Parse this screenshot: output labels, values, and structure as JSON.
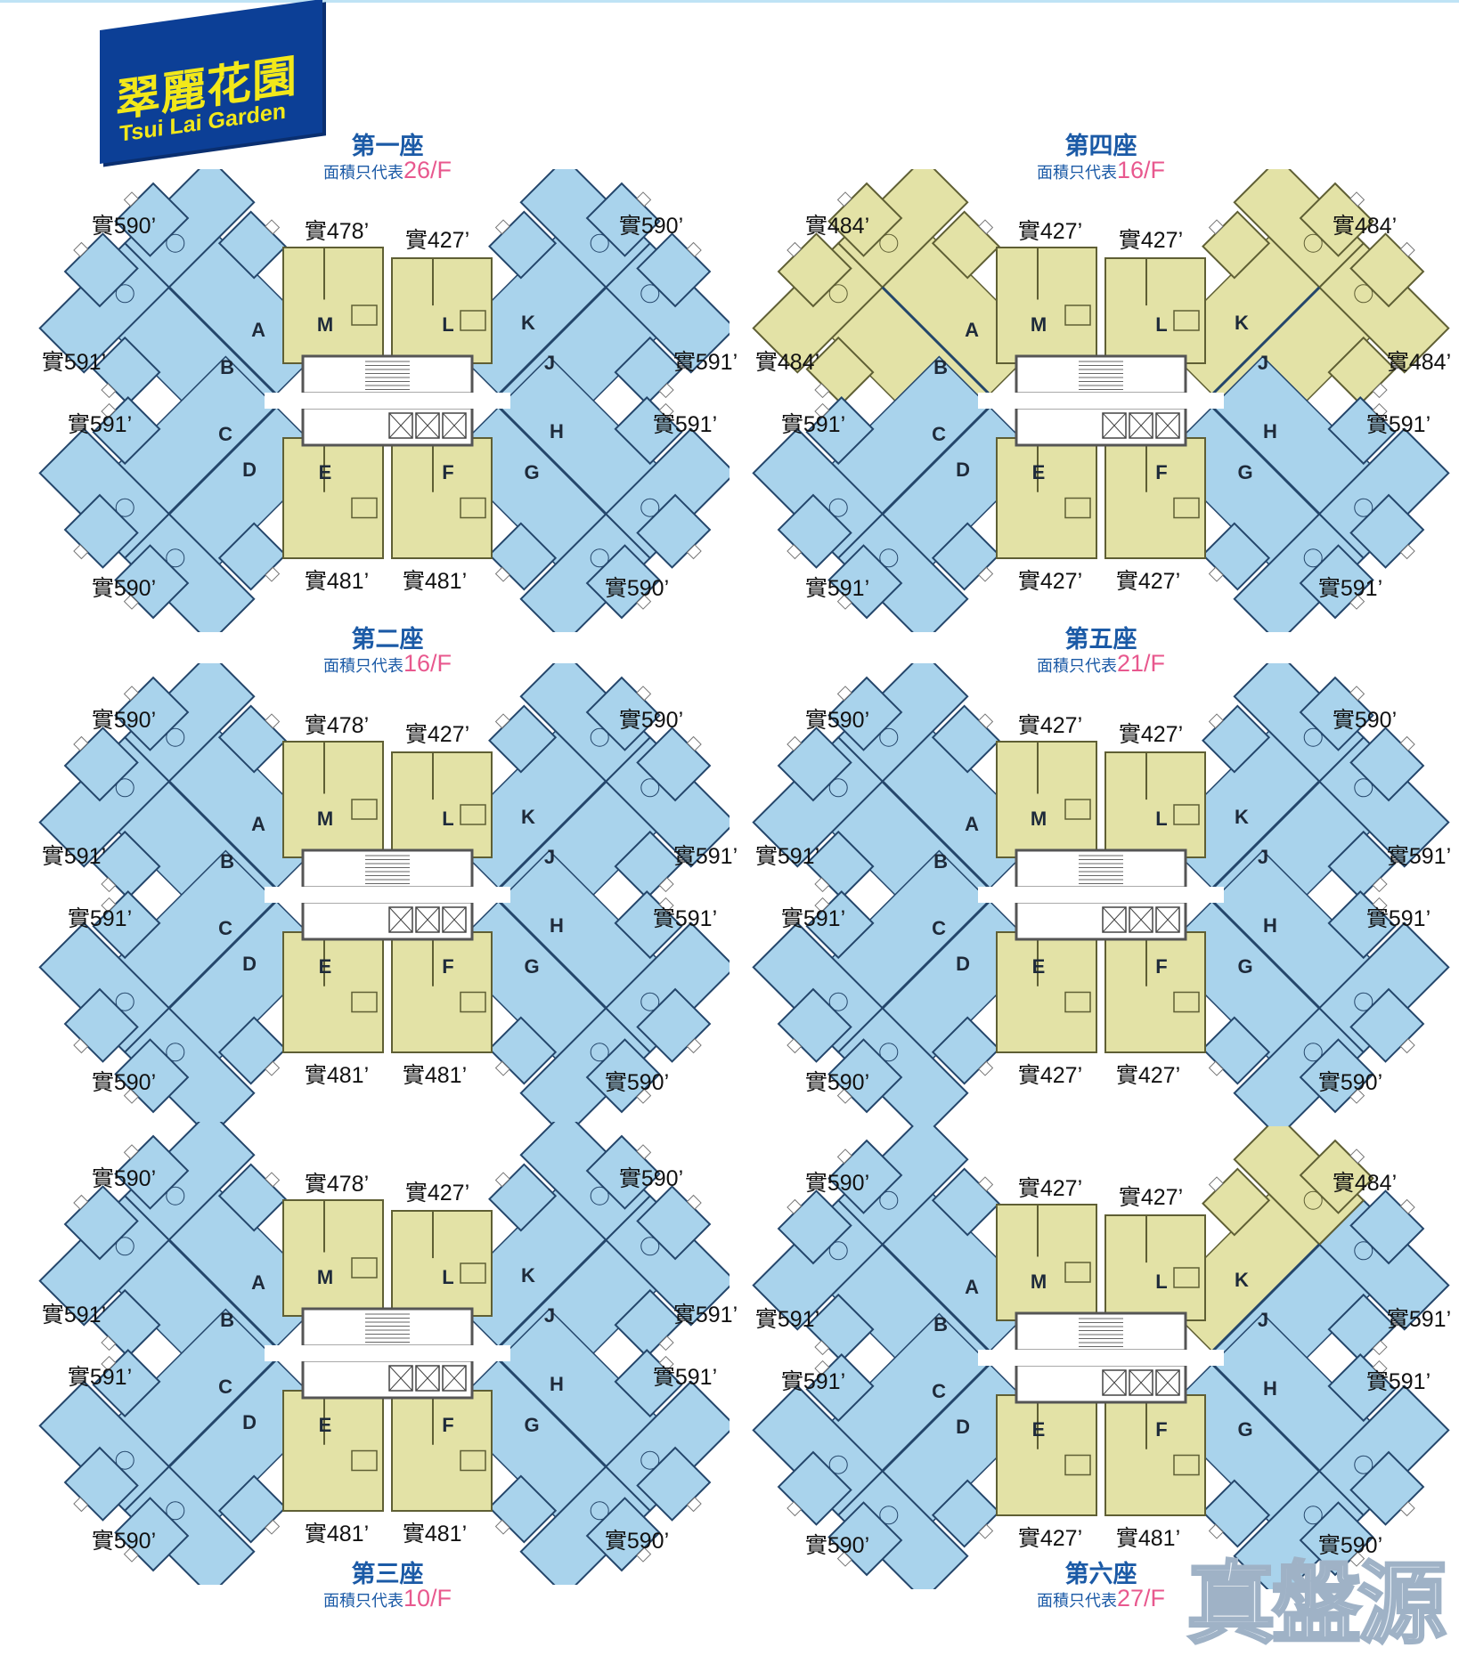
{
  "logo": {
    "name_cn": "翠麗花園",
    "name_en": "Tsui Lai Garden",
    "color": "#0c3f96",
    "text_color": "#f2e81a"
  },
  "area_prefix_note": "面積只代表",
  "colors": {
    "blue_unit": "#a9d3ec",
    "yellow_unit": "#e3e2a6",
    "title": "#1b5aa6",
    "floor": "#e8588e"
  },
  "buildings": [
    {
      "title": "第一座",
      "note": "面積只代表",
      "floor": "26/F",
      "yellow_units": [
        "M",
        "L",
        "E",
        "F"
      ],
      "areas": [
        "實590’",
        "實591’",
        "實591’",
        "實590’",
        "實478’",
        "實427’",
        "實481’",
        "實481’",
        "實590’",
        "實591’",
        "實591’",
        "實590’"
      ]
    },
    {
      "title": "第二座",
      "note": "面積只代表",
      "floor": "16/F",
      "yellow_units": [
        "M",
        "L",
        "E",
        "F"
      ],
      "areas": [
        "實590’",
        "實591’",
        "實591’",
        "實590’",
        "實478’",
        "實427’",
        "實481’",
        "實481’",
        "實590’",
        "實591’",
        "實591’",
        "實590’"
      ]
    },
    {
      "title": "第三座",
      "note": "面積只代表",
      "floor": "10/F",
      "yellow_units": [
        "M",
        "L",
        "E",
        "F"
      ],
      "areas": [
        "實590’",
        "實591’",
        "實591’",
        "實590’",
        "實478’",
        "實427’",
        "實481’",
        "實481’",
        "實590’",
        "實591’",
        "實591’",
        "實590’"
      ]
    },
    {
      "title": "第四座",
      "note": "面積只代表",
      "floor": "16/F",
      "yellow_units": [
        "M",
        "L",
        "E",
        "F",
        "A",
        "B",
        "J",
        "K"
      ],
      "areas": [
        "實484’",
        "實484’",
        "實591’",
        "實591’",
        "實427’",
        "實427’",
        "實427’",
        "實427’",
        "實484’",
        "實484’",
        "實591’",
        "實591’"
      ]
    },
    {
      "title": "第五座",
      "note": "面積只代表",
      "floor": "21/F",
      "yellow_units": [
        "M",
        "L",
        "E",
        "F"
      ],
      "areas": [
        "實590’",
        "實591’",
        "實591’",
        "實590’",
        "實427’",
        "實427’",
        "實427’",
        "實427’",
        "實590’",
        "實591’",
        "實591’",
        "實590’"
      ]
    },
    {
      "title": "第六座",
      "note": "面積只代表",
      "floor": "27/F",
      "yellow_units": [
        "M",
        "L",
        "E",
        "F",
        "K"
      ],
      "areas": [
        "實590’",
        "實591’",
        "實591’",
        "實590’",
        "實427’",
        "實427’",
        "實427’",
        "實481’",
        "實484’",
        "實591’",
        "實591’",
        "實590’"
      ]
    }
  ],
  "unit_letters": [
    "A",
    "B",
    "C",
    "D",
    "E",
    "F",
    "G",
    "H",
    "J",
    "K",
    "L",
    "M"
  ],
  "watermark": "真盤源"
}
